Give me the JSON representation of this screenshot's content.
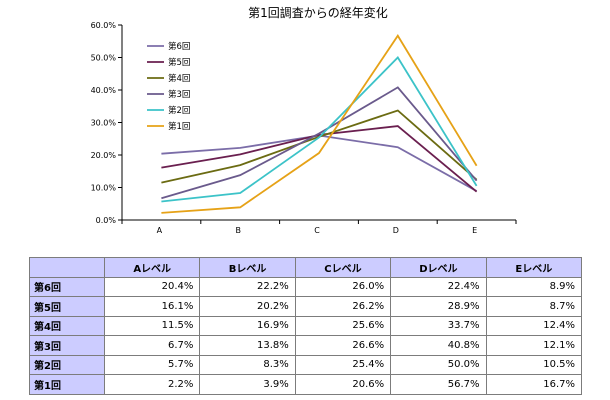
{
  "chart_data": {
    "type": "line",
    "title": "第1回調査からの経年変化",
    "categories": [
      "A",
      "B",
      "C",
      "D",
      "E"
    ],
    "ylim": [
      0,
      60
    ],
    "y_ticks": [
      "0.0%",
      "10.0%",
      "20.0%",
      "30.0%",
      "40.0%",
      "50.0%",
      "60.0%"
    ],
    "y_tick_values": [
      0,
      10,
      20,
      30,
      40,
      50,
      60
    ],
    "grid": false,
    "legend_position": "top-left",
    "series": [
      {
        "name": "第6回",
        "color": "#7b6da8",
        "values": [
          20.4,
          22.2,
          26.0,
          22.4,
          8.9
        ]
      },
      {
        "name": "第5回",
        "color": "#6a1f4f",
        "values": [
          16.1,
          20.2,
          26.2,
          28.9,
          8.7
        ]
      },
      {
        "name": "第4回",
        "color": "#6b6b12",
        "values": [
          11.5,
          16.9,
          25.6,
          33.7,
          12.4
        ]
      },
      {
        "name": "第3回",
        "color": "#6a5a8c",
        "values": [
          6.7,
          13.8,
          26.6,
          40.8,
          12.1
        ]
      },
      {
        "name": "第2回",
        "color": "#3cc3c8",
        "values": [
          5.7,
          8.3,
          25.4,
          50.0,
          10.5
        ]
      },
      {
        "name": "第1回",
        "color": "#e6a217",
        "values": [
          2.2,
          3.9,
          20.6,
          56.7,
          16.7
        ]
      }
    ]
  },
  "table": {
    "headers": [
      "",
      "Aレベル",
      "Bレベル",
      "Cレベル",
      "Dレベル",
      "Eレベル"
    ],
    "rows": [
      {
        "label": "第6回",
        "cells": [
          "20.4%",
          "22.2%",
          "26.0%",
          "22.4%",
          "8.9%"
        ]
      },
      {
        "label": "第5回",
        "cells": [
          "16.1%",
          "20.2%",
          "26.2%",
          "28.9%",
          "8.7%"
        ]
      },
      {
        "label": "第4回",
        "cells": [
          "11.5%",
          "16.9%",
          "25.6%",
          "33.7%",
          "12.4%"
        ]
      },
      {
        "label": "第3回",
        "cells": [
          "6.7%",
          "13.8%",
          "26.6%",
          "40.8%",
          "12.1%"
        ]
      },
      {
        "label": "第2回",
        "cells": [
          "5.7%",
          "8.3%",
          "25.4%",
          "50.0%",
          "10.5%"
        ]
      },
      {
        "label": "第1回",
        "cells": [
          "2.2%",
          "3.9%",
          "20.6%",
          "56.7%",
          "16.7%"
        ]
      }
    ]
  }
}
